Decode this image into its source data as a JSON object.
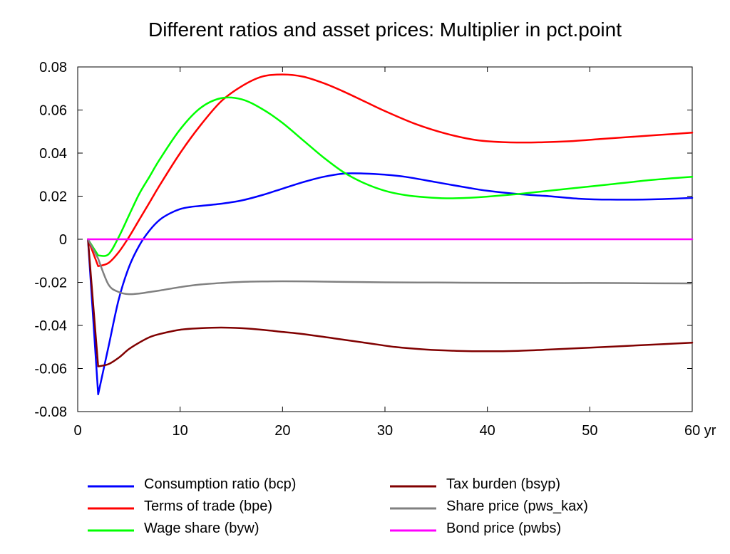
{
  "chart_data": {
    "type": "line",
    "title": "Different ratios and asset prices: Multiplier in pct.point",
    "xlim": [
      0,
      60
    ],
    "ylim": [
      -0.08,
      0.08
    ],
    "x_ticks": [
      0,
      10,
      20,
      30,
      40,
      50,
      60
    ],
    "x_tick_labels": [
      "0",
      "10",
      "20",
      "30",
      "40",
      "50",
      "60 yr"
    ],
    "y_ticks": [
      0.08,
      0.06,
      0.04,
      0.02,
      0,
      -0.02,
      -0.04,
      -0.06,
      -0.08
    ],
    "y_tick_labels": [
      "0.08",
      "0.06",
      "0.04",
      "0.02",
      "0",
      "-0.02",
      "-0.04",
      "-0.06",
      "-0.08"
    ],
    "grid": false,
    "legend_position": "bottom",
    "series": [
      {
        "name": "Consumption ratio (bcp)",
        "color": "#0000ff",
        "x": [
          1,
          2,
          3,
          4,
          5,
          6,
          7,
          8,
          9,
          10,
          11,
          12,
          14,
          16,
          18,
          20,
          22,
          24,
          26,
          28,
          30,
          32,
          35,
          38,
          40,
          43,
          46,
          49,
          52,
          56,
          60
        ],
        "y": [
          0,
          -0.072,
          -0.05,
          -0.028,
          -0.013,
          -0.003,
          0.004,
          0.009,
          0.012,
          0.014,
          0.015,
          0.0155,
          0.0165,
          0.018,
          0.0205,
          0.0235,
          0.0265,
          0.029,
          0.0305,
          0.0305,
          0.03,
          0.029,
          0.0265,
          0.024,
          0.0225,
          0.021,
          0.02,
          0.0188,
          0.0184,
          0.0185,
          0.0192
        ]
      },
      {
        "name": "Terms of trade (bpe)",
        "color": "#ff0000",
        "x": [
          1,
          2,
          3,
          4,
          5,
          6,
          7,
          8,
          10,
          12,
          14,
          16,
          18,
          20,
          22,
          24,
          26,
          28,
          30,
          33,
          36,
          39,
          42,
          45,
          48,
          51,
          54,
          57,
          60
        ],
        "y": [
          0,
          -0.0125,
          -0.011,
          -0.006,
          0.001,
          0.009,
          0.017,
          0.025,
          0.04,
          0.053,
          0.064,
          0.071,
          0.0755,
          0.0765,
          0.0755,
          0.0725,
          0.0685,
          0.064,
          0.0595,
          0.0535,
          0.049,
          0.046,
          0.045,
          0.045,
          0.0455,
          0.0465,
          0.0475,
          0.0485,
          0.0495
        ]
      },
      {
        "name": "Wage share (byw)",
        "color": "#00ff00",
        "x": [
          1,
          2,
          3,
          4,
          5,
          6,
          7,
          8,
          10,
          12,
          14,
          16,
          18,
          20,
          22,
          24,
          26,
          28,
          30,
          32,
          34,
          36,
          38,
          40,
          43,
          46,
          49,
          52,
          56,
          60
        ],
        "y": [
          0,
          -0.0075,
          -0.007,
          0.001,
          0.011,
          0.021,
          0.029,
          0.037,
          0.051,
          0.061,
          0.0655,
          0.065,
          0.0605,
          0.054,
          0.046,
          0.038,
          0.031,
          0.026,
          0.0225,
          0.0205,
          0.0195,
          0.019,
          0.0192,
          0.0198,
          0.021,
          0.0225,
          0.024,
          0.0255,
          0.0275,
          0.029
        ]
      },
      {
        "name": "Tax burden (bsyp)",
        "color": "#800000",
        "x": [
          1,
          2,
          3,
          4,
          5,
          6,
          7,
          8,
          10,
          12,
          14,
          16,
          18,
          20,
          22,
          25,
          28,
          31,
          34,
          37,
          40,
          43,
          46,
          50,
          55,
          60
        ],
        "y": [
          0,
          -0.059,
          -0.058,
          -0.055,
          -0.051,
          -0.048,
          -0.0455,
          -0.044,
          -0.042,
          -0.0413,
          -0.041,
          -0.0413,
          -0.042,
          -0.043,
          -0.044,
          -0.046,
          -0.048,
          -0.05,
          -0.0512,
          -0.0518,
          -0.052,
          -0.0518,
          -0.0512,
          -0.0503,
          -0.0492,
          -0.048
        ]
      },
      {
        "name": "Share price (pws_kax)",
        "color": "#808080",
        "x": [
          1,
          2,
          3,
          4,
          5,
          6,
          7,
          8,
          10,
          12,
          14,
          16,
          18,
          20,
          23,
          26,
          30,
          35,
          40,
          45,
          50,
          55,
          60
        ],
        "y": [
          0,
          -0.009,
          -0.021,
          -0.0245,
          -0.0255,
          -0.0252,
          -0.0245,
          -0.0238,
          -0.0222,
          -0.021,
          -0.0203,
          -0.0198,
          -0.0196,
          -0.0195,
          -0.0196,
          -0.0198,
          -0.02,
          -0.0201,
          -0.0202,
          -0.0203,
          -0.0203,
          -0.0204,
          -0.0205
        ]
      },
      {
        "name": "Bond price (pwbs)",
        "color": "#ff00ff",
        "x": [
          1,
          60
        ],
        "y": [
          0,
          0
        ]
      }
    ]
  }
}
